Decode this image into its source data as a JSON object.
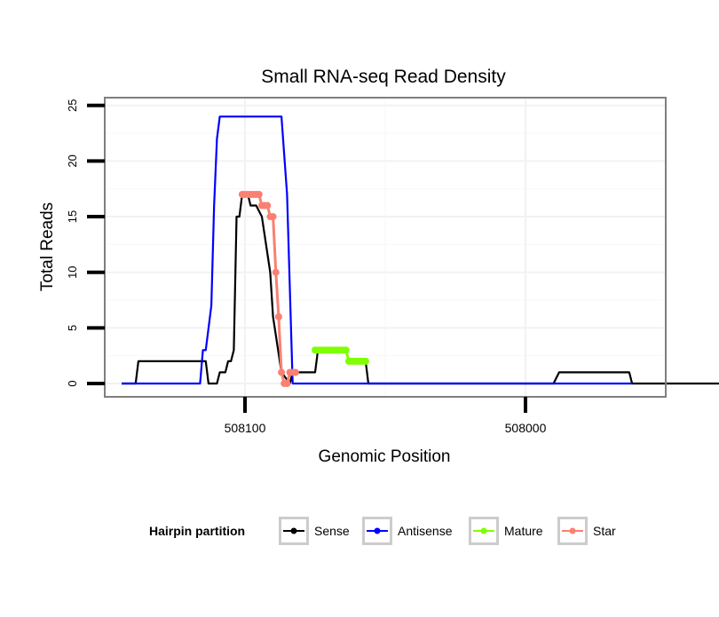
{
  "chart_data": {
    "type": "line",
    "title": "Small RNA-seq Read Density",
    "xlabel": "Genomic Position",
    "ylabel": "Total Reads",
    "xlim": [
      508150,
      507950
    ],
    "ylim": [
      -1.2,
      25.7
    ],
    "x_ticks": [
      508100,
      508000
    ],
    "x_tick_labels": [
      "508100",
      "508000"
    ],
    "y_ticks": [
      0,
      5,
      10,
      15,
      20,
      25
    ],
    "y_tick_labels": [
      "0",
      "5",
      "10",
      "15",
      "20",
      "25"
    ],
    "legend": {
      "title": "Hairpin partition",
      "position": "bottom",
      "entries": [
        {
          "name": "Sense",
          "color": "#000000"
        },
        {
          "name": "Antisense",
          "color": "#0000ff"
        },
        {
          "name": "Mature",
          "color": "#7fff00"
        },
        {
          "name": "Star",
          "color": "#fa8072"
        }
      ]
    },
    "series": [
      {
        "name": "Sense",
        "color": "#000000",
        "markers": false,
        "x": [
          508144,
          508139,
          508138,
          508114,
          508113,
          508110,
          508109,
          508107,
          508106,
          508105,
          508104,
          508103,
          508102,
          508101,
          508099,
          508098,
          508096,
          508094,
          508091,
          508090,
          508087,
          508084,
          508083,
          508082,
          508080,
          508075,
          508074,
          508073,
          508071,
          508068,
          508064,
          508063,
          508061,
          508057,
          508056,
          507990,
          507988,
          507963,
          507962,
          507915
        ],
        "y": [
          0,
          0,
          2,
          2,
          0,
          0,
          1,
          1,
          2,
          2,
          3,
          15,
          15,
          17,
          17,
          16,
          16,
          15,
          10,
          6,
          1,
          0,
          1,
          1,
          1,
          1,
          3,
          3,
          3,
          3,
          3,
          2,
          2,
          2,
          0,
          0,
          1,
          1,
          0,
          0
        ]
      },
      {
        "name": "Antisense",
        "color": "#0000ff",
        "markers": false,
        "x": [
          508144,
          508116,
          508115,
          508114,
          508112,
          508111,
          508110,
          508109,
          508107,
          508087,
          508085,
          508083,
          507962
        ],
        "y": [
          0,
          0,
          3,
          3,
          7,
          16,
          22,
          24,
          24,
          24,
          17,
          0,
          0
        ]
      },
      {
        "name": "Mature",
        "color": "#7fff00",
        "markers": true,
        "x": [
          508075,
          508074,
          508073,
          508072,
          508071,
          508070,
          508069,
          508068,
          508067,
          508066,
          508065,
          508064,
          508063,
          508062,
          508061,
          508060,
          508059,
          508058,
          508057
        ],
        "y": [
          3,
          3,
          3,
          3,
          3,
          3,
          3,
          3,
          3,
          3,
          3,
          3,
          2,
          2,
          2,
          2,
          2,
          2,
          2
        ]
      },
      {
        "name": "Star",
        "color": "#fa8072",
        "markers": true,
        "x": [
          508101,
          508100,
          508099,
          508098,
          508097,
          508096,
          508095,
          508094,
          508093,
          508092,
          508091,
          508090,
          508089,
          508088,
          508087,
          508086,
          508085,
          508084,
          508083,
          508082
        ],
        "y": [
          17,
          17,
          17,
          17,
          17,
          17,
          17,
          16,
          16,
          16,
          15,
          15,
          10,
          6,
          1,
          0,
          0,
          1,
          1,
          1
        ]
      }
    ]
  }
}
